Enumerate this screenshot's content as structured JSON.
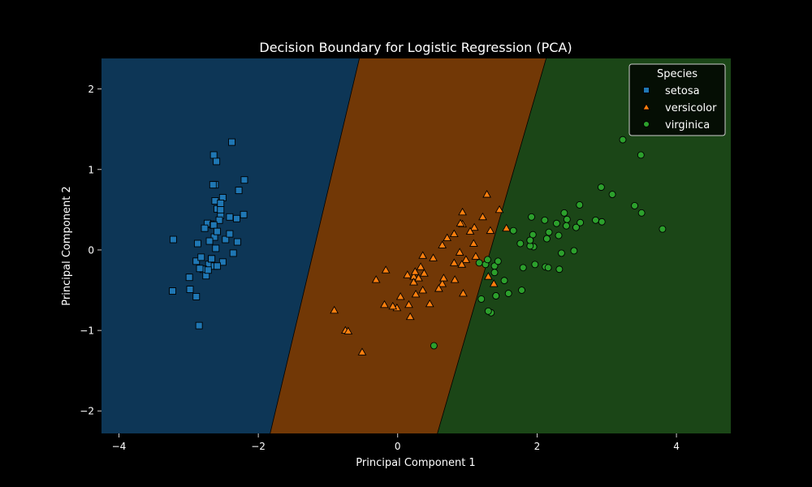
{
  "chart_data": {
    "type": "scatter",
    "title": "Decision Boundary for Logistic Regression (PCA)",
    "xlabel": "Principal Component 1",
    "ylabel": "Principal Component 2",
    "xlim": [
      -4.25,
      4.78
    ],
    "ylim": [
      -2.28,
      2.38
    ],
    "xticks": [
      -4,
      -2,
      0,
      2,
      4
    ],
    "yticks": [
      -2,
      -1,
      0,
      1,
      2
    ],
    "grid": false,
    "legend": {
      "title": "Species",
      "placement": "top-right"
    },
    "regions": [
      {
        "class": "setosa",
        "color": "#0d3656"
      },
      {
        "class": "versicolor",
        "color": "#723806"
      },
      {
        "class": "virginica",
        "color": "#1b4617"
      }
    ],
    "boundaries": [
      {
        "x_at_ymax": -0.55,
        "x_at_ymin": -1.83
      },
      {
        "x_at_ymax": 2.13,
        "x_at_ymin": 0.57
      }
    ],
    "series": [
      {
        "name": "setosa",
        "marker": "square",
        "color": "#1f77b4",
        "points": [
          [
            -2.68,
            0.32
          ],
          [
            -2.71,
            -0.18
          ],
          [
            -2.89,
            -0.14
          ],
          [
            -2.75,
            -0.32
          ],
          [
            -2.73,
            0.33
          ],
          [
            -2.28,
            0.74
          ],
          [
            -2.82,
            -0.09
          ],
          [
            -2.63,
            0.16
          ],
          [
            -2.89,
            -0.58
          ],
          [
            -2.67,
            -0.11
          ],
          [
            -2.51,
            0.65
          ],
          [
            -2.61,
            0.02
          ],
          [
            -2.79,
            -0.24
          ],
          [
            -3.23,
            -0.51
          ],
          [
            -2.64,
            1.18
          ],
          [
            -2.38,
            1.34
          ],
          [
            -2.62,
            0.81
          ],
          [
            -2.65,
            0.31
          ],
          [
            -2.2,
            0.87
          ],
          [
            -2.59,
            0.51
          ],
          [
            -2.31,
            0.39
          ],
          [
            -2.54,
            0.43
          ],
          [
            -3.22,
            0.13
          ],
          [
            -2.3,
            0.1
          ],
          [
            -2.36,
            -0.04
          ],
          [
            -2.51,
            -0.15
          ],
          [
            -2.47,
            0.13
          ],
          [
            -2.56,
            0.37
          ],
          [
            -2.64,
            0.31
          ],
          [
            -2.63,
            -0.2
          ],
          [
            -2.59,
            -0.2
          ],
          [
            -2.41,
            0.41
          ],
          [
            -2.65,
            0.81
          ],
          [
            -2.6,
            1.1
          ],
          [
            -2.67,
            -0.11
          ],
          [
            -2.87,
            0.08
          ],
          [
            -2.62,
            0.61
          ],
          [
            -2.67,
            -0.11
          ],
          [
            -2.98,
            -0.49
          ],
          [
            -2.59,
            0.23
          ],
          [
            -2.77,
            0.27
          ],
          [
            -2.85,
            -0.94
          ],
          [
            -2.99,
            -0.34
          ],
          [
            -2.41,
            0.2
          ],
          [
            -2.21,
            0.44
          ],
          [
            -2.72,
            -0.25
          ],
          [
            -2.54,
            0.5
          ],
          [
            -2.84,
            -0.23
          ],
          [
            -2.54,
            0.58
          ],
          [
            -2.7,
            0.11
          ]
        ]
      },
      {
        "name": "versicolor",
        "marker": "triangle",
        "color": "#ff7f0e",
        "points": [
          [
            1.28,
            0.69
          ],
          [
            0.93,
            0.32
          ],
          [
            1.46,
            0.5
          ],
          [
            0.18,
            -0.83
          ],
          [
            1.09,
            0.08
          ],
          [
            0.64,
            -0.42
          ],
          [
            1.1,
            0.28
          ],
          [
            -0.75,
            -1.0
          ],
          [
            1.04,
            0.23
          ],
          [
            -0.01,
            -0.72
          ],
          [
            -0.51,
            -1.27
          ],
          [
            0.51,
            -0.1
          ],
          [
            0.26,
            -0.55
          ],
          [
            0.98,
            -0.12
          ],
          [
            -0.17,
            -0.25
          ],
          [
            0.93,
            0.47
          ],
          [
            0.66,
            -0.35
          ],
          [
            0.23,
            -0.33
          ],
          [
            0.94,
            -0.54
          ],
          [
            0.04,
            -0.58
          ],
          [
            1.12,
            -0.08
          ],
          [
            0.36,
            -0.07
          ],
          [
            1.3,
            -0.33
          ],
          [
            0.92,
            -0.18
          ],
          [
            0.71,
            0.15
          ],
          [
            0.9,
            0.33
          ],
          [
            1.33,
            0.24
          ],
          [
            1.56,
            0.27
          ],
          [
            0.81,
            -0.16
          ],
          [
            -0.31,
            -0.37
          ],
          [
            -0.07,
            -0.7
          ],
          [
            -0.19,
            -0.68
          ],
          [
            0.14,
            -0.31
          ],
          [
            1.38,
            -0.42
          ],
          [
            0.59,
            -0.48
          ],
          [
            0.81,
            0.2
          ],
          [
            1.22,
            0.41
          ],
          [
            0.82,
            -0.37
          ],
          [
            0.25,
            -0.27
          ],
          [
            0.16,
            -0.68
          ],
          [
            0.46,
            -0.67
          ],
          [
            0.89,
            -0.03
          ],
          [
            0.23,
            -0.4
          ],
          [
            -0.71,
            -1.01
          ],
          [
            0.36,
            -0.5
          ],
          [
            0.33,
            -0.21
          ],
          [
            0.38,
            -0.29
          ],
          [
            0.64,
            0.06
          ],
          [
            -0.91,
            -0.75
          ],
          [
            0.3,
            -0.35
          ]
        ]
      },
      {
        "name": "virginica",
        "marker": "circle",
        "color": "#2ca02c",
        "points": [
          [
            2.53,
            -0.01
          ],
          [
            1.41,
            -0.57
          ],
          [
            2.62,
            0.34
          ],
          [
            1.97,
            -0.18
          ],
          [
            2.35,
            -0.04
          ],
          [
            3.4,
            0.55
          ],
          [
            0.52,
            -1.19
          ],
          [
            2.93,
            0.35
          ],
          [
            2.32,
            -0.24
          ],
          [
            2.92,
            0.78
          ],
          [
            1.66,
            0.24
          ],
          [
            1.8,
            -0.22
          ],
          [
            2.17,
            0.22
          ],
          [
            1.34,
            -0.78
          ],
          [
            1.59,
            -0.54
          ],
          [
            1.9,
            0.12
          ],
          [
            1.95,
            0.04
          ],
          [
            3.49,
            1.18
          ],
          [
            3.8,
            0.26
          ],
          [
            1.3,
            -0.76
          ],
          [
            2.43,
            0.38
          ],
          [
            1.2,
            -0.61
          ],
          [
            3.5,
            0.46
          ],
          [
            1.39,
            -0.2
          ],
          [
            2.28,
            0.33
          ],
          [
            2.61,
            0.56
          ],
          [
            1.26,
            -0.18
          ],
          [
            1.29,
            -0.12
          ],
          [
            2.12,
            -0.21
          ],
          [
            2.39,
            0.46
          ],
          [
            2.84,
            0.37
          ],
          [
            3.23,
            1.37
          ],
          [
            2.16,
            -0.22
          ],
          [
            1.44,
            -0.14
          ],
          [
            1.78,
            -0.5
          ],
          [
            3.08,
            0.69
          ],
          [
            2.14,
            0.14
          ],
          [
            1.9,
            0.05
          ],
          [
            1.17,
            -0.16
          ],
          [
            2.11,
            0.37
          ],
          [
            2.31,
            0.18
          ],
          [
            1.92,
            0.41
          ],
          [
            1.41,
            -0.57
          ],
          [
            2.56,
            0.28
          ],
          [
            2.42,
            0.3
          ],
          [
            1.94,
            0.19
          ],
          [
            1.53,
            -0.38
          ],
          [
            1.76,
            0.08
          ],
          [
            1.9,
            0.12
          ],
          [
            1.39,
            -0.28
          ]
        ]
      }
    ]
  }
}
